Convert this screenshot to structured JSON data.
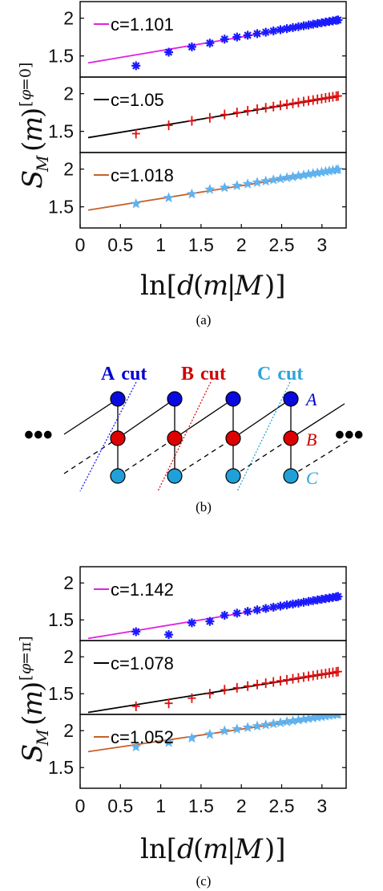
{
  "chart_data": [
    {
      "type": "scatter",
      "caption": "(a)",
      "xlabel": "ln[d(m|M)]",
      "ylabel": "S_M(m)^[φ=0]",
      "xlim": [
        0,
        3.3
      ],
      "xticks": [
        "0",
        "0.5",
        "1",
        "1.5",
        "2",
        "2.5",
        "3"
      ],
      "panels": [
        {
          "legend": "c=1.101",
          "line_color": "#e020e0",
          "marker": "asterisk",
          "marker_color": "#1a1aff",
          "ylim": [
            1.22,
            2.22
          ],
          "yticks": [
            "1.5",
            "2"
          ],
          "fit": {
            "intercept": 1.39,
            "slope": 0.18
          },
          "points_y": [
            1.37,
            1.55,
            1.62,
            1.67
          ]
        },
        {
          "legend": "c=1.05",
          "line_color": "#000000",
          "marker": "plus",
          "marker_color": "#e01010",
          "ylim": [
            1.22,
            2.22
          ],
          "yticks": [
            "1.5",
            "2"
          ],
          "fit": {
            "intercept": 1.4,
            "slope": 0.175
          },
          "points_y": [
            1.47,
            1.58,
            1.64,
            1.68
          ]
        },
        {
          "legend": "c=1.018",
          "line_color": "#c8602a",
          "marker": "star",
          "marker_color": "#5fb2ee",
          "ylim": [
            1.22,
            2.22
          ],
          "yticks": [
            "1.5",
            "2"
          ],
          "fit": {
            "intercept": 1.44,
            "slope": 0.17
          },
          "points_y": [
            1.54,
            1.62,
            1.67,
            1.73
          ]
        }
      ]
    },
    {
      "type": "scatter",
      "caption": "(c)",
      "xlabel": "ln[d(m|M)]",
      "ylabel": "S_M(m)^[φ=π]",
      "xlim": [
        0,
        3.3
      ],
      "xticks": [
        "0",
        "0.5",
        "1",
        "1.5",
        "2",
        "2.5",
        "3"
      ],
      "panels": [
        {
          "legend": "c=1.142",
          "line_color": "#e020e0",
          "marker": "asterisk",
          "marker_color": "#1a1aff",
          "ylim": [
            1.22,
            2.22
          ],
          "yticks": [
            "1.5",
            "2"
          ],
          "fit": {
            "intercept": 1.23,
            "slope": 0.18
          },
          "points_y": [
            1.34,
            1.3,
            1.46,
            1.48
          ]
        },
        {
          "legend": "c=1.078",
          "line_color": "#000000",
          "marker": "plus",
          "marker_color": "#e01010",
          "ylim": [
            1.22,
            2.22
          ],
          "yticks": [
            "1.5",
            "2"
          ],
          "fit": {
            "intercept": 1.23,
            "slope": 0.175
          },
          "points_y": [
            1.33,
            1.37,
            1.44,
            1.5
          ]
        },
        {
          "legend": "c=1.052",
          "line_color": "#c8602a",
          "marker": "star",
          "marker_color": "#5fb2ee",
          "ylim": [
            1.22,
            2.22
          ],
          "yticks": [
            "1.5",
            "2"
          ],
          "fit": {
            "intercept": 1.7,
            "slope": 0.16
          },
          "points_y": [
            1.78,
            1.84,
            1.9,
            1.95
          ]
        }
      ]
    }
  ],
  "diagram": {
    "caption": "(b)",
    "cut_labels": [
      {
        "letter": "A",
        "word": "cut",
        "color": "#0000d0"
      },
      {
        "letter": "B",
        "word": "cut",
        "color": "#d00000"
      },
      {
        "letter": "C",
        "word": "cut",
        "color": "#2fa3d8"
      }
    ],
    "row_labels": [
      {
        "text": "A",
        "color": "#0000d0"
      },
      {
        "text": "B",
        "color": "#d00000"
      },
      {
        "text": "C",
        "color": "#2fa3d8"
      }
    ],
    "node_colors": {
      "A": "#0a0adf",
      "B": "#dd0000",
      "C": "#1fa0d8"
    },
    "ellipsis": "•••"
  }
}
